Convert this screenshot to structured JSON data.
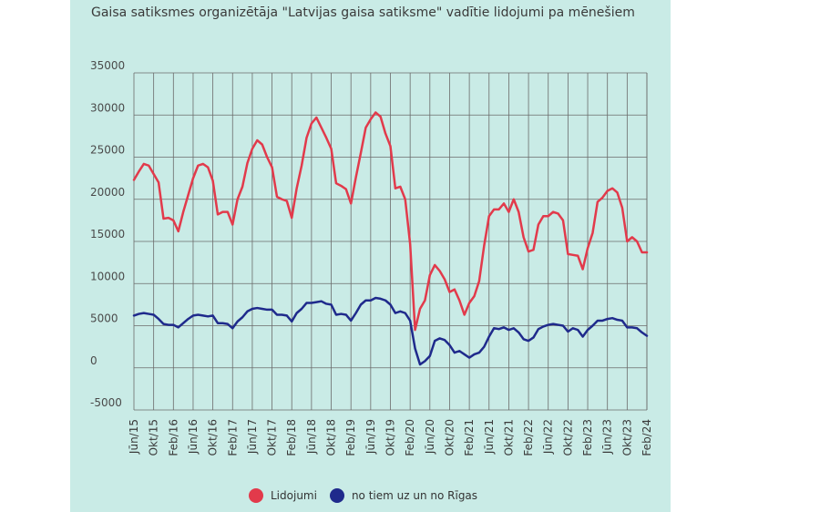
{
  "chart_data": {
    "type": "line",
    "title": "Gaisa satiksmes organizētāja \"Latvijas gaisa satiksme\" vadītie lidojumi pa mēnešiem",
    "ylim": [
      -5000,
      35000
    ],
    "yticks": [
      "35000",
      "30000",
      "25000",
      "20000",
      "15000",
      "10000",
      "5000",
      "0",
      "-5000"
    ],
    "ytick_values": [
      35000,
      30000,
      25000,
      20000,
      15000,
      10000,
      5000,
      0,
      -5000
    ],
    "x": [
      "2015-06",
      "2015-07",
      "2015-08",
      "2015-09",
      "2015-10",
      "2015-11",
      "2015-12",
      "2016-01",
      "2016-02",
      "2016-03",
      "2016-04",
      "2016-05",
      "2016-06",
      "2016-07",
      "2016-08",
      "2016-09",
      "2016-10",
      "2016-11",
      "2016-12",
      "2017-01",
      "2017-02",
      "2017-03",
      "2017-04",
      "2017-05",
      "2017-06",
      "2017-07",
      "2017-08",
      "2017-09",
      "2017-10",
      "2017-11",
      "2017-12",
      "2018-01",
      "2018-02",
      "2018-03",
      "2018-04",
      "2018-05",
      "2018-06",
      "2018-07",
      "2018-08",
      "2018-09",
      "2018-10",
      "2018-11",
      "2018-12",
      "2019-01",
      "2019-02",
      "2019-03",
      "2019-04",
      "2019-05",
      "2019-06",
      "2019-07",
      "2019-08",
      "2019-09",
      "2019-10",
      "2019-11",
      "2019-12",
      "2020-01",
      "2020-02",
      "2020-03",
      "2020-04",
      "2020-05",
      "2020-06",
      "2020-07",
      "2020-08",
      "2020-09",
      "2020-10",
      "2020-11",
      "2020-12",
      "2021-01",
      "2021-02",
      "2021-03",
      "2021-04",
      "2021-05",
      "2021-06",
      "2021-07",
      "2021-08",
      "2021-09",
      "2021-10",
      "2021-11",
      "2021-12",
      "2022-01",
      "2022-02",
      "2022-03",
      "2022-04",
      "2022-05",
      "2022-06",
      "2022-07",
      "2022-08",
      "2022-09",
      "2022-10",
      "2022-11",
      "2022-12",
      "2023-01",
      "2023-02",
      "2023-03",
      "2023-04",
      "2023-05",
      "2023-06",
      "2023-07",
      "2023-08",
      "2023-09",
      "2023-10",
      "2023-11",
      "2023-12",
      "2024-01",
      "2024-02"
    ],
    "xtick_labels": [
      "Jūn/15",
      "Okt/15",
      "Feb/16",
      "Jūn/16",
      "Okt/16",
      "Feb/17",
      "Jūn/17",
      "Okt/17",
      "Feb/18",
      "Jūn/18",
      "Okt/18",
      "Feb/19",
      "Jūn/19",
      "Okt/19",
      "Feb/20",
      "Jūn/20",
      "Okt/20",
      "Feb/21",
      "Jūn/21",
      "Okt/21",
      "Feb/22",
      "Jūn/22",
      "Okt/22",
      "Feb/23",
      "Jūn/23",
      "Okt/23",
      "Feb/24"
    ],
    "series": [
      {
        "name": "Lidojumi",
        "color": "#e23a4b",
        "values": [
          22300,
          23300,
          24200,
          24000,
          23000,
          22000,
          17700,
          17800,
          17500,
          16200,
          18500,
          20500,
          22500,
          24000,
          24200,
          23800,
          22200,
          18200,
          18500,
          18500,
          17000,
          20000,
          21500,
          24300,
          26000,
          27000,
          26500,
          25000,
          23800,
          20300,
          20000,
          19800,
          17800,
          21300,
          24000,
          27300,
          29000,
          29700,
          28500,
          27300,
          26000,
          21900,
          21600,
          21200,
          19500,
          22600,
          25500,
          28500,
          29500,
          30300,
          29800,
          27800,
          26300,
          21300,
          21500,
          20000,
          14700,
          4500,
          7000,
          8000,
          11000,
          12200,
          11500,
          10500,
          9000,
          9300,
          8000,
          6300,
          7700,
          8500,
          10300,
          14500,
          18000,
          18800,
          18800,
          19500,
          18500,
          20000,
          18500,
          15500,
          13800,
          14000,
          17000,
          18000,
          18000,
          18500,
          18300,
          17500,
          13500,
          13400,
          13300,
          11700,
          14200,
          16000,
          19700,
          20200,
          21000,
          21300,
          20800,
          19000,
          15000,
          15500,
          15000,
          13700,
          13700
        ],
        "label_y_note": ""
      },
      {
        "name": "no tiem uz un no Rīgas",
        "color": "#1f2a8c",
        "values": [
          6200,
          6400,
          6500,
          6400,
          6300,
          5800,
          5200,
          5100,
          5100,
          4800,
          5300,
          5800,
          6200,
          6300,
          6200,
          6100,
          6200,
          5300,
          5300,
          5200,
          4700,
          5500,
          6000,
          6700,
          7000,
          7100,
          7000,
          6900,
          6900,
          6300,
          6300,
          6200,
          5500,
          6500,
          7000,
          7700,
          7700,
          7800,
          7900,
          7600,
          7500,
          6300,
          6400,
          6300,
          5600,
          6500,
          7500,
          8000,
          8000,
          8300,
          8200,
          8000,
          7500,
          6500,
          6700,
          6500,
          5600,
          2300,
          400,
          800,
          1400,
          3200,
          3500,
          3300,
          2700,
          1800,
          2000,
          1600,
          1200,
          1600,
          1800,
          2500,
          3700,
          4700,
          4600,
          4800,
          4500,
          4700,
          4200,
          3400,
          3200,
          3600,
          4600,
          4900,
          5100,
          5200,
          5100,
          5000,
          4300,
          4700,
          4500,
          3700,
          4500,
          5000,
          5600,
          5600,
          5800,
          5900,
          5700,
          5600,
          4800,
          4800,
          4700,
          4200,
          3800
        ]
      }
    ]
  }
}
